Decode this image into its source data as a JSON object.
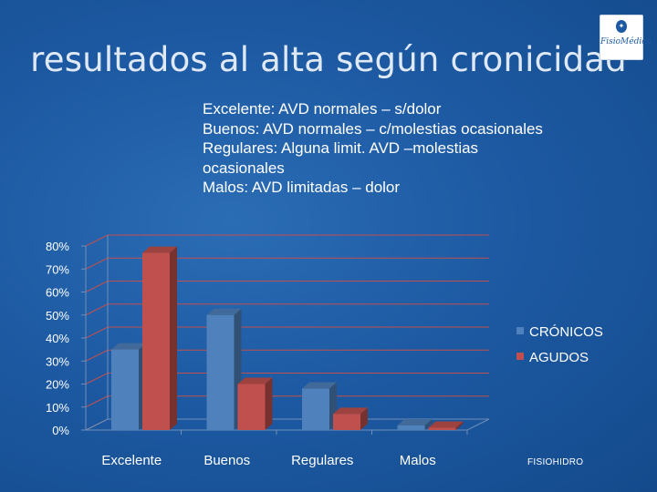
{
  "slide": {
    "title": "resultados al alta según cronicidad",
    "logo_text": "FisioMédica",
    "notes": [
      "Excelente: AVD normales – s/dolor",
      "Buenos: AVD normales – c/molestias ocasionales",
      "Regulares: Alguna limit. AVD –molestias",
      "ocasionales",
      "Malos: AVD limitadas – dolor"
    ],
    "footer": "FISIOHIDRO"
  },
  "chart_data": {
    "type": "bar",
    "title": "",
    "xlabel": "",
    "ylabel": "",
    "categories": [
      "Excelente",
      "Buenos",
      "Regulares",
      "Malos"
    ],
    "series": [
      {
        "name": "CRÓNICOS",
        "values": [
          0.35,
          0.5,
          0.18,
          0.02
        ],
        "color": "#4f81bd"
      },
      {
        "name": "AGUDOS",
        "values": [
          0.77,
          0.2,
          0.07,
          0.01
        ],
        "color": "#c0504d"
      }
    ],
    "ylim": [
      0,
      0.8
    ],
    "yticks": [
      "0%",
      "10%",
      "20%",
      "30%",
      "40%",
      "50%",
      "60%",
      "70%",
      "80%"
    ],
    "grid": true,
    "legend_position": "right"
  }
}
